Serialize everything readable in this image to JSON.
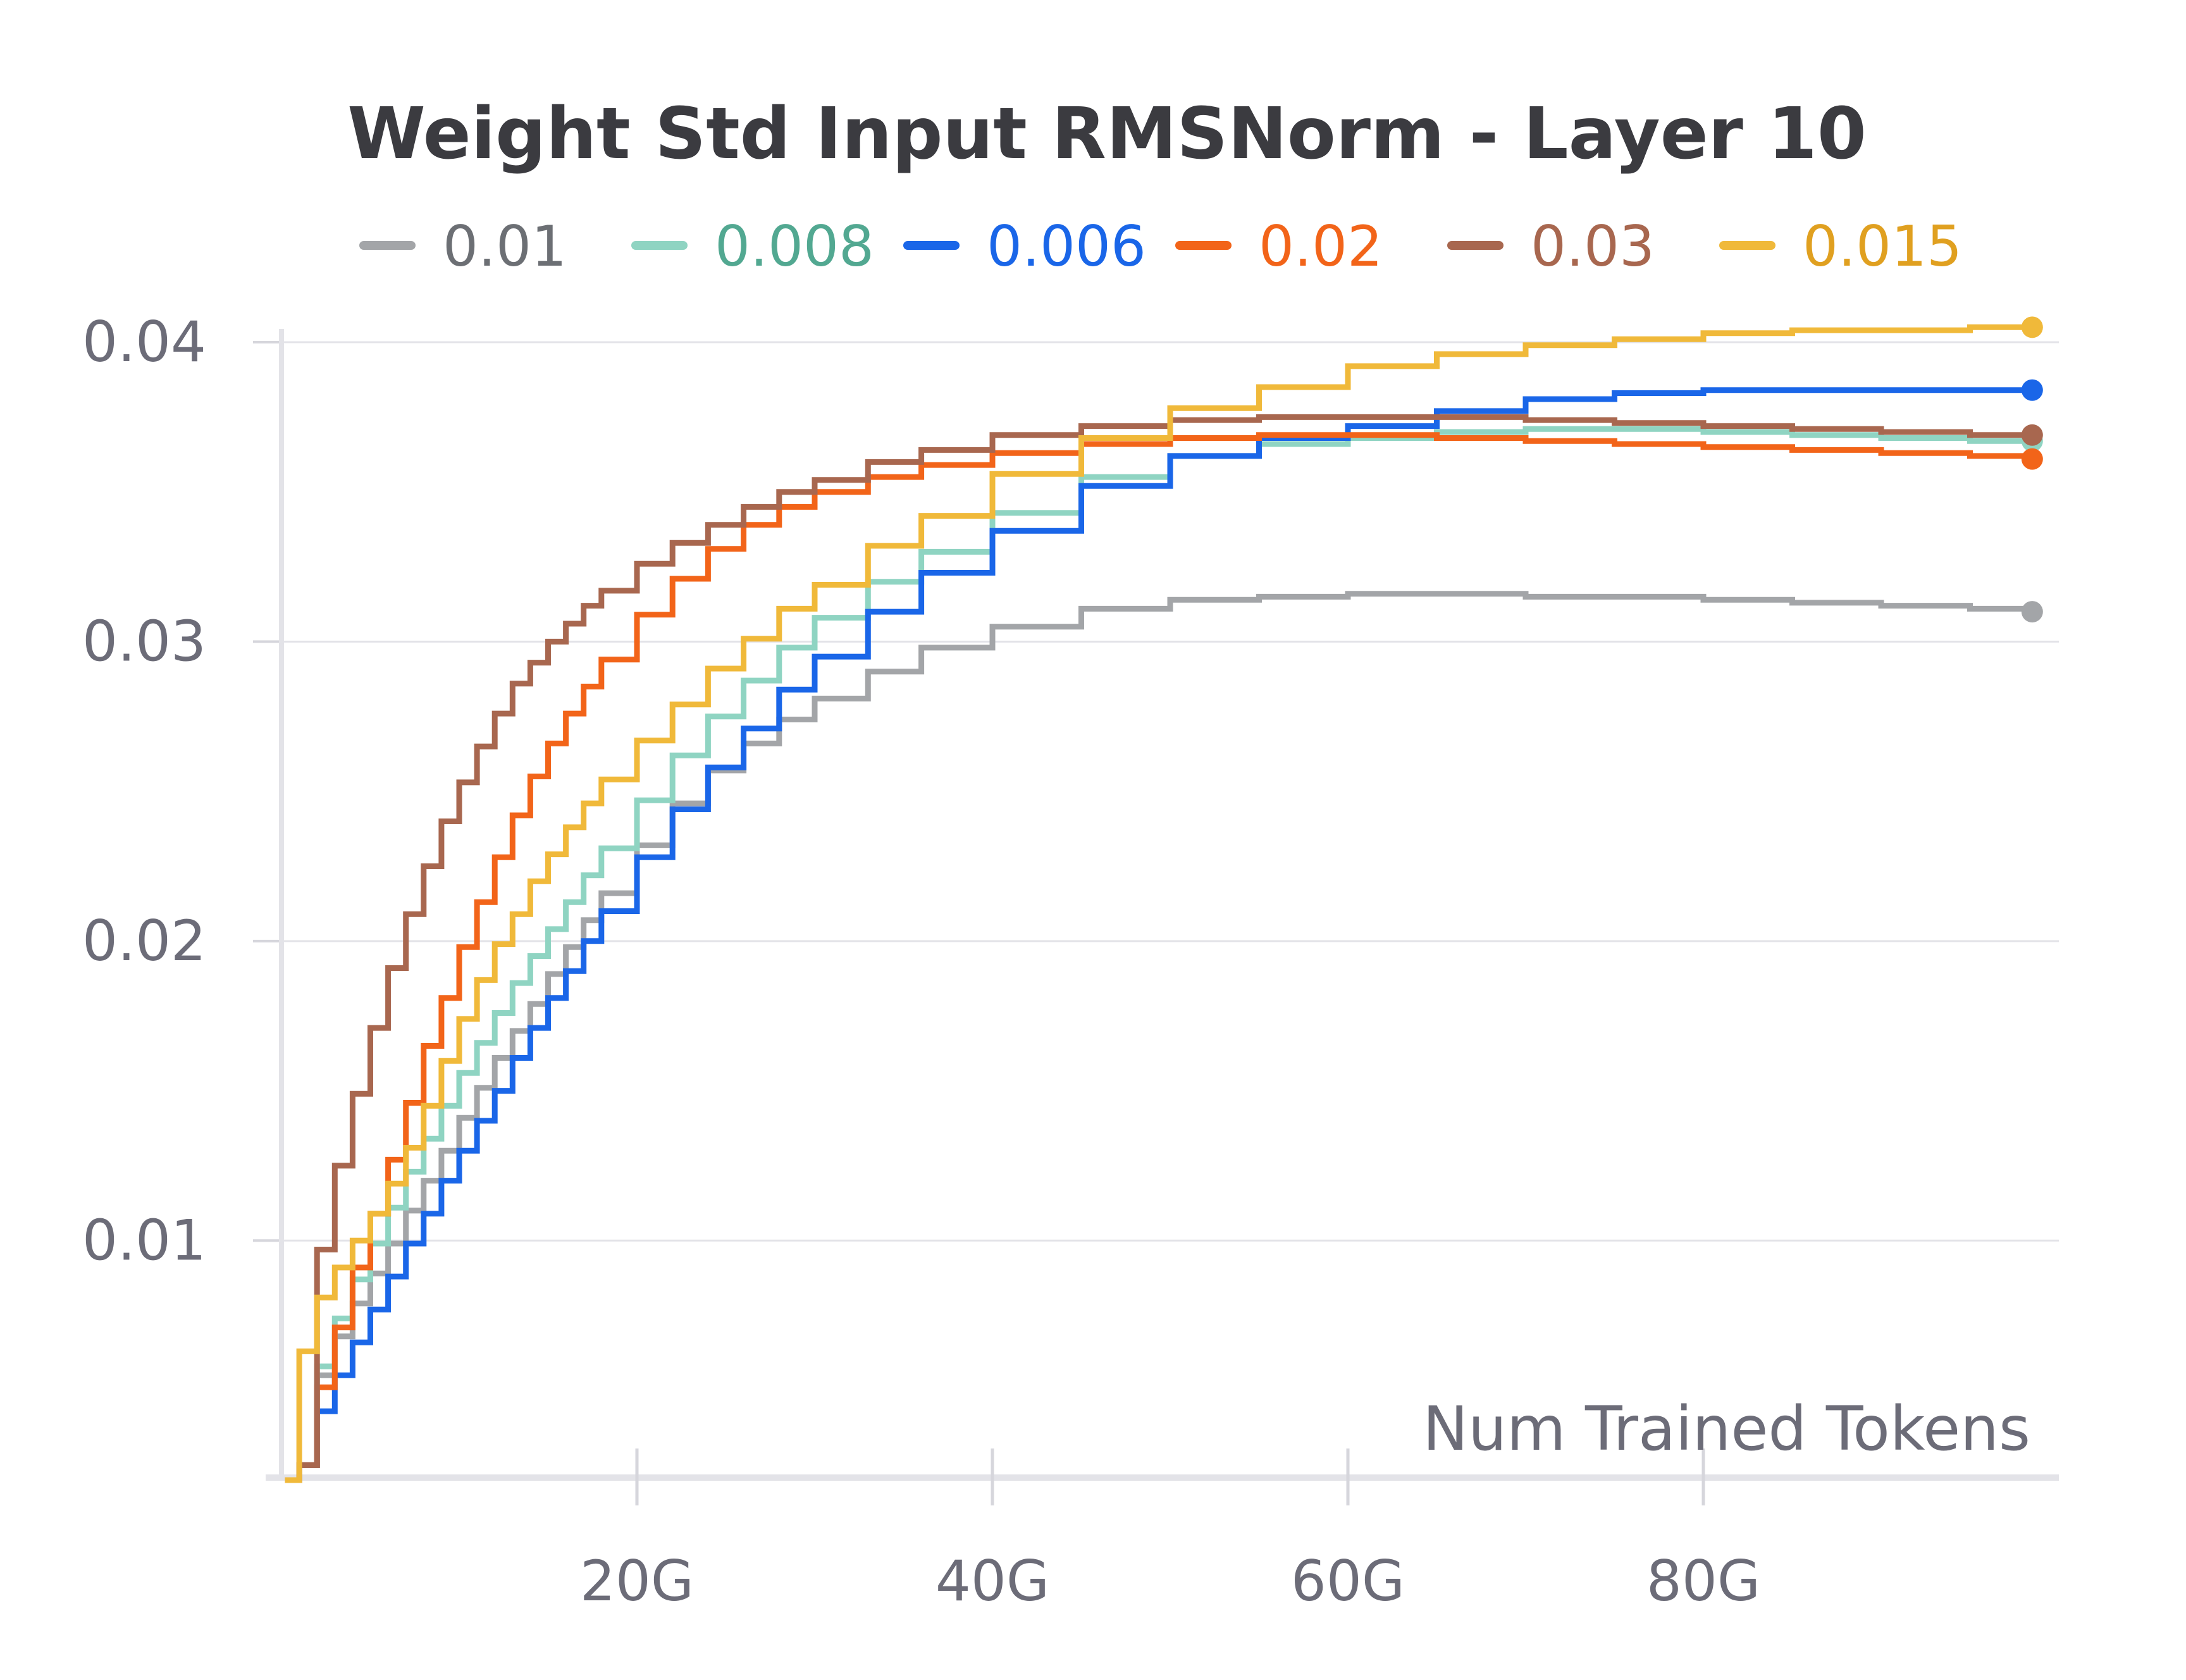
{
  "chart_data": {
    "type": "line",
    "title": "Weight Std Input RMSNorm - Layer 10",
    "xlabel": "Num Trained Tokens",
    "ylabel": "",
    "xlim": [
      0,
      100
    ],
    "ylim": [
      0.002,
      0.0415
    ],
    "x_tick_values": [
      20,
      40,
      60,
      80
    ],
    "x_tick_labels": [
      "20G",
      "40G",
      "60G",
      "80G"
    ],
    "y_tick_values": [
      0.01,
      0.02,
      0.03,
      0.04
    ],
    "y_tick_labels": [
      "0.01",
      "0.02",
      "0.03",
      "0.04"
    ],
    "grid": true,
    "legend_position": "top",
    "series": [
      {
        "name": "0.01",
        "color": "#a3a5a8",
        "label_color": "#6c6f74",
        "x": [
          0.2,
          1,
          2,
          3,
          4,
          5,
          6,
          7,
          8,
          9,
          10,
          11,
          12,
          13,
          14,
          15,
          16,
          17,
          18,
          20,
          22,
          24,
          26,
          28,
          30,
          33,
          36,
          40,
          45,
          50,
          55,
          60,
          65,
          70,
          75,
          80,
          85,
          90,
          95,
          98.5
        ],
        "y": [
          0.002,
          0.0025,
          0.0055,
          0.0068,
          0.0079,
          0.0089,
          0.0099,
          0.011,
          0.012,
          0.013,
          0.0141,
          0.0151,
          0.0161,
          0.017,
          0.0179,
          0.0189,
          0.0198,
          0.0207,
          0.0216,
          0.0232,
          0.0246,
          0.0257,
          0.0266,
          0.0274,
          0.0281,
          0.029,
          0.0298,
          0.0305,
          0.0311,
          0.0314,
          0.0315,
          0.0316,
          0.0316,
          0.0315,
          0.0315,
          0.0314,
          0.0313,
          0.0312,
          0.0311,
          0.031
        ]
      },
      {
        "name": "0.008",
        "color": "#8fd4c2",
        "label_color": "#52a891",
        "x": [
          0.2,
          1,
          2,
          3,
          4,
          5,
          6,
          7,
          8,
          9,
          10,
          11,
          12,
          13,
          14,
          15,
          16,
          17,
          18,
          20,
          22,
          24,
          26,
          28,
          30,
          33,
          36,
          40,
          45,
          50,
          55,
          60,
          65,
          70,
          75,
          80,
          85,
          90,
          95,
          98.5
        ],
        "y": [
          0.002,
          0.0025,
          0.0058,
          0.0074,
          0.0087,
          0.0099,
          0.0111,
          0.0123,
          0.0134,
          0.0145,
          0.0156,
          0.0166,
          0.0176,
          0.0186,
          0.0195,
          0.0204,
          0.0213,
          0.0222,
          0.0231,
          0.0247,
          0.0262,
          0.0275,
          0.0287,
          0.0298,
          0.0308,
          0.032,
          0.033,
          0.0343,
          0.0355,
          0.0362,
          0.0366,
          0.0368,
          0.037,
          0.0371,
          0.0371,
          0.037,
          0.0369,
          0.0368,
          0.0367,
          0.0367
        ]
      },
      {
        "name": "0.006",
        "color": "#1a66e8",
        "label_color": "#1a66e8",
        "x": [
          0.2,
          1,
          2,
          3,
          4,
          5,
          6,
          7,
          8,
          9,
          10,
          11,
          12,
          13,
          14,
          15,
          16,
          17,
          18,
          20,
          22,
          24,
          26,
          28,
          30,
          33,
          36,
          40,
          45,
          50,
          55,
          60,
          65,
          70,
          75,
          80,
          85,
          90,
          95,
          98.5
        ],
        "y": [
          0.002,
          0.0025,
          0.0043,
          0.0055,
          0.0066,
          0.0077,
          0.0088,
          0.0099,
          0.0109,
          0.012,
          0.013,
          0.014,
          0.015,
          0.0161,
          0.0171,
          0.0181,
          0.019,
          0.02,
          0.021,
          0.0228,
          0.0244,
          0.0258,
          0.0271,
          0.0284,
          0.0295,
          0.031,
          0.0323,
          0.0337,
          0.0352,
          0.0362,
          0.0368,
          0.0372,
          0.0377,
          0.0381,
          0.0383,
          0.0384,
          0.0384,
          0.0384,
          0.0384,
          0.0384
        ]
      },
      {
        "name": "0.02",
        "color": "#f26419",
        "label_color": "#f26419",
        "x": [
          0.2,
          1,
          2,
          3,
          4,
          5,
          6,
          7,
          8,
          9,
          10,
          11,
          12,
          13,
          14,
          15,
          16,
          17,
          18,
          20,
          22,
          24,
          26,
          28,
          30,
          33,
          36,
          40,
          45,
          50,
          55,
          60,
          65,
          70,
          75,
          80,
          85,
          90,
          95,
          98.5
        ],
        "y": [
          0.002,
          0.0025,
          0.0051,
          0.0071,
          0.0091,
          0.0109,
          0.0127,
          0.0146,
          0.0165,
          0.0181,
          0.0198,
          0.0213,
          0.0228,
          0.0242,
          0.0255,
          0.0266,
          0.0276,
          0.0285,
          0.0294,
          0.0309,
          0.0321,
          0.0331,
          0.0339,
          0.0345,
          0.035,
          0.0355,
          0.0359,
          0.0363,
          0.0366,
          0.0368,
          0.0369,
          0.0369,
          0.0368,
          0.0367,
          0.0366,
          0.0365,
          0.0364,
          0.0363,
          0.0362,
          0.0361
        ]
      },
      {
        "name": "0.03",
        "color": "#a8674f",
        "label_color": "#a8674f",
        "x": [
          0.2,
          1,
          2,
          3,
          4,
          5,
          6,
          7,
          8,
          9,
          10,
          11,
          12,
          13,
          14,
          15,
          16,
          17,
          18,
          20,
          22,
          24,
          26,
          28,
          30,
          33,
          36,
          40,
          45,
          50,
          55,
          60,
          65,
          70,
          75,
          80,
          85,
          90,
          95,
          98.5
        ],
        "y": [
          0.002,
          0.0025,
          0.0097,
          0.0125,
          0.0149,
          0.0171,
          0.0191,
          0.0209,
          0.0225,
          0.024,
          0.0253,
          0.0265,
          0.0276,
          0.0286,
          0.0293,
          0.03,
          0.0306,
          0.0312,
          0.0317,
          0.0326,
          0.0333,
          0.0339,
          0.0345,
          0.035,
          0.0354,
          0.036,
          0.0364,
          0.0369,
          0.0372,
          0.0374,
          0.0375,
          0.0375,
          0.0375,
          0.0374,
          0.0373,
          0.0372,
          0.0371,
          0.037,
          0.0369,
          0.0369
        ]
      },
      {
        "name": "0.015",
        "color": "#f0b93a",
        "label_color": "#e0a020",
        "x": [
          0.2,
          1,
          2,
          3,
          4,
          5,
          6,
          7,
          8,
          9,
          10,
          11,
          12,
          13,
          14,
          15,
          16,
          17,
          18,
          20,
          22,
          24,
          26,
          28,
          30,
          33,
          36,
          40,
          45,
          50,
          55,
          60,
          65,
          70,
          75,
          80,
          85,
          90,
          95,
          98.5
        ],
        "y": [
          0.002,
          0.0063,
          0.0081,
          0.0091,
          0.01,
          0.0109,
          0.0119,
          0.0131,
          0.0145,
          0.016,
          0.0174,
          0.0187,
          0.0199,
          0.0209,
          0.022,
          0.0229,
          0.0238,
          0.0246,
          0.0254,
          0.0267,
          0.0279,
          0.0291,
          0.0301,
          0.0311,
          0.0319,
          0.0332,
          0.0342,
          0.0356,
          0.0368,
          0.0378,
          0.0385,
          0.0392,
          0.0396,
          0.0399,
          0.0401,
          0.0403,
          0.0404,
          0.0404,
          0.0405,
          0.0405
        ]
      }
    ]
  }
}
